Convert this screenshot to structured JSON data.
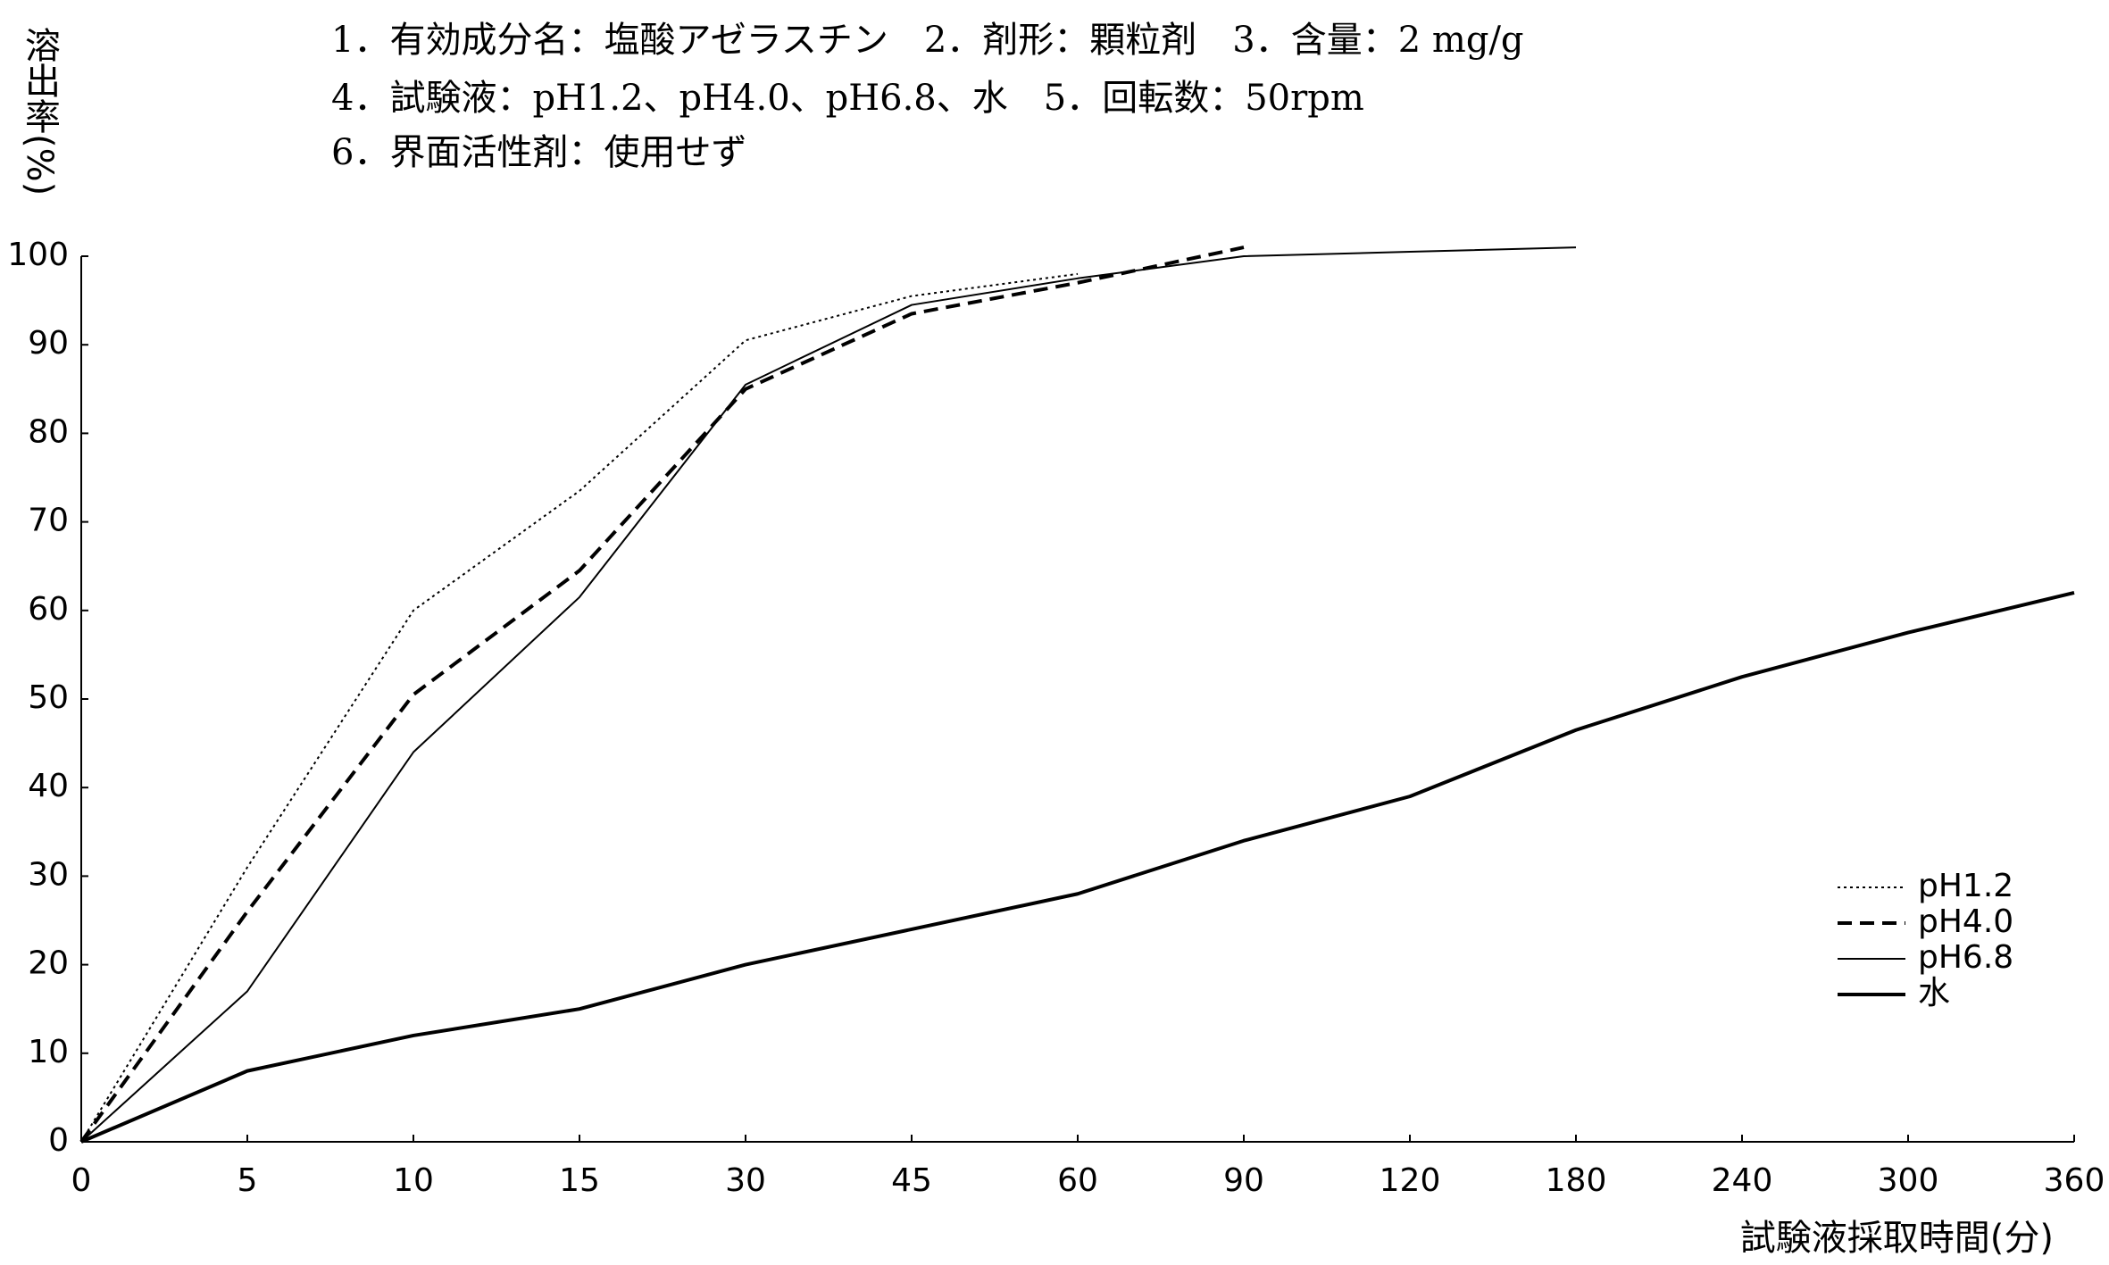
{
  "chart_data": {
    "type": "line",
    "annotations": [
      "1．有効成分名：塩酸アゼラスチン　2．剤形：顆粒剤　3．含量：2 mg/g",
      "4．試験液：pH1.2、pH4.0、pH6.8、水　5．回転数：50rpm",
      "6．界面活性剤：使用せず"
    ],
    "y_label": "溶出率(%)",
    "x_label": "試験液採取時間(分)",
    "categories": [
      "0",
      "5",
      "10",
      "15",
      "30",
      "45",
      "60",
      "90",
      "120",
      "180",
      "240",
      "300",
      "360"
    ],
    "series": [
      {
        "name": "pH1.2",
        "color": "#000000",
        "style": "dotted",
        "values": [
          0,
          31,
          60,
          73.5,
          90.5,
          95.5,
          98,
          null,
          null,
          null,
          null,
          null,
          null
        ]
      },
      {
        "name": "pH4.0",
        "color": "#000000",
        "style": "dashed",
        "values": [
          0,
          26,
          50.5,
          64.5,
          85,
          93.5,
          97,
          101,
          null,
          null,
          null,
          null,
          null
        ]
      },
      {
        "name": "pH6.8",
        "color": "#000000",
        "style": "solid",
        "values": [
          0,
          17,
          44,
          61.5,
          85.5,
          94.5,
          97.5,
          100,
          100.5,
          101,
          null,
          null,
          null
        ]
      },
      {
        "name": "水",
        "color": "#000000",
        "style": "bold",
        "values": [
          0,
          8,
          12,
          15,
          20,
          24,
          28,
          34,
          39,
          46.5,
          52.5,
          57.5,
          62
        ]
      }
    ],
    "ylim": [
      0,
      100
    ],
    "yticks": [
      0,
      10,
      20,
      30,
      40,
      50,
      60,
      70,
      80,
      90,
      100
    ],
    "grid": false,
    "legend": "right"
  }
}
